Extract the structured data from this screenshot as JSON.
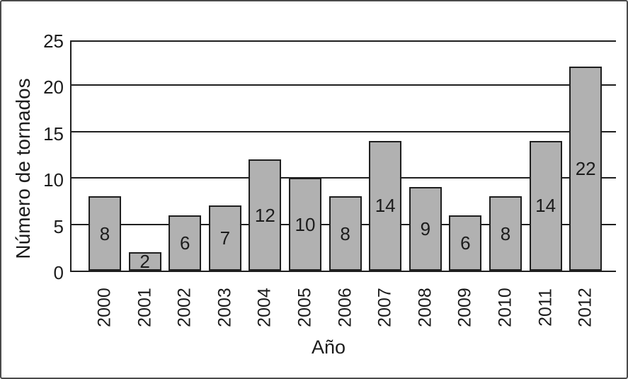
{
  "chart_data": {
    "type": "bar",
    "title": "",
    "xlabel": "Año",
    "ylabel": "Número de tornados",
    "categories": [
      "2000",
      "2001",
      "2002",
      "2003",
      "2004",
      "2005",
      "2006",
      "2007",
      "2008",
      "2009",
      "2010",
      "2011",
      "2012"
    ],
    "values": [
      8,
      2,
      6,
      7,
      12,
      10,
      8,
      14,
      9,
      6,
      8,
      14,
      22
    ],
    "value_labels_inside_bars": true,
    "ylim": [
      0,
      25
    ],
    "yticks": [
      0,
      5,
      10,
      15,
      20,
      25
    ],
    "grid": "horizontal",
    "legend": "none",
    "colors": {
      "bar_fill": "#b1b1b1",
      "bar_border": "#1f1f1f",
      "gridline": "#1f1f1f",
      "text": "#1c1c1c",
      "figure_border": "#4a4a4a"
    }
  }
}
